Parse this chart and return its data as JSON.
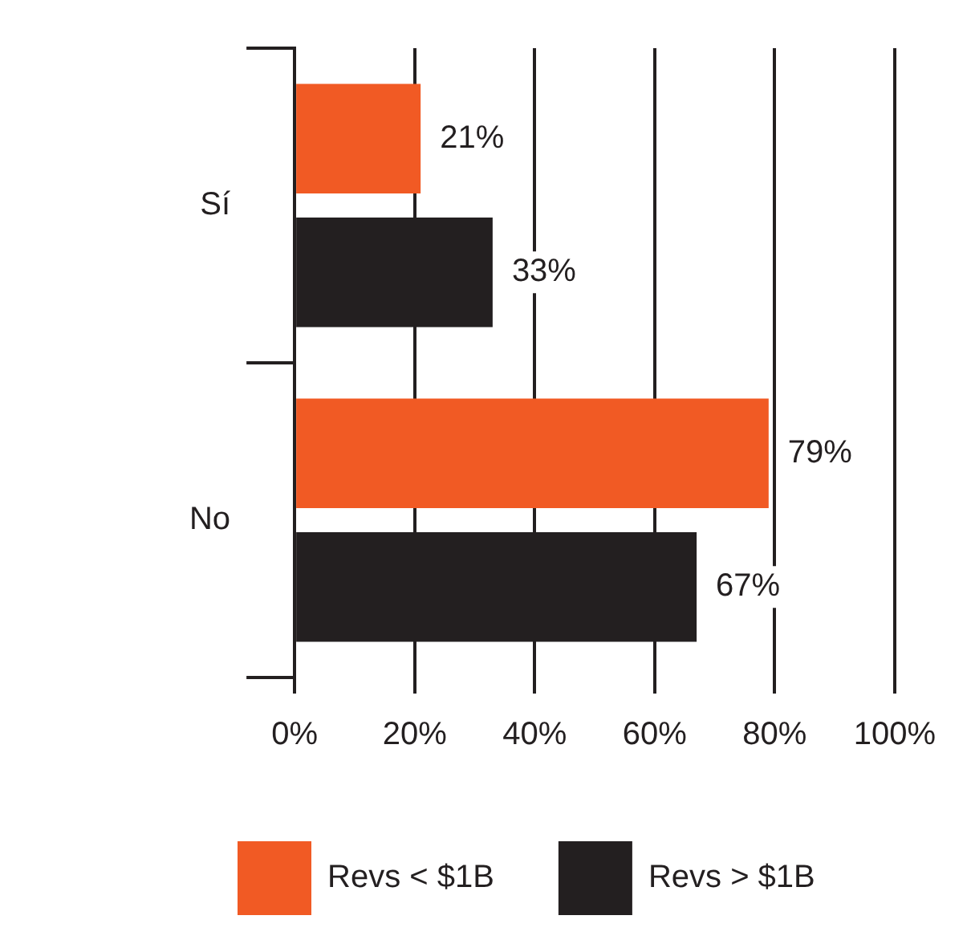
{
  "chart_data": {
    "type": "bar",
    "orientation": "horizontal",
    "categories": [
      "Sí",
      "No"
    ],
    "series": [
      {
        "name": "Revs < $1B",
        "color": "#f15a24",
        "values": [
          21,
          79
        ],
        "value_labels": [
          "21%",
          "79%"
        ]
      },
      {
        "name": "Revs > $1B",
        "color": "#231f20",
        "values": [
          33,
          67
        ],
        "value_labels": [
          "33%",
          "67%"
        ]
      }
    ],
    "xlim": [
      0,
      100
    ],
    "xticks": [
      {
        "value": 0,
        "label": "0%"
      },
      {
        "value": 20,
        "label": "20%"
      },
      {
        "value": 40,
        "label": "40%"
      },
      {
        "value": 60,
        "label": "60%"
      },
      {
        "value": 80,
        "label": "80%"
      },
      {
        "value": 100,
        "label": "100%"
      }
    ],
    "grid": "x",
    "legend": "bottom"
  }
}
